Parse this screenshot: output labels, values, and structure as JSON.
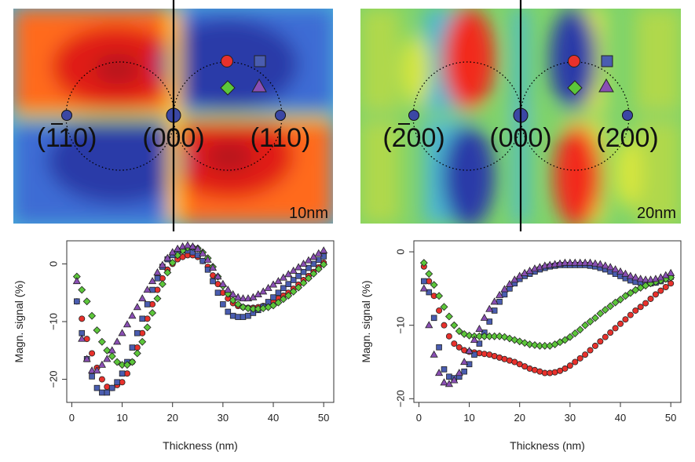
{
  "maps": [
    {
      "thickness_label": "10nm",
      "spots": [
        {
          "label": "(110)",
          "overbar": "left"
        },
        {
          "label": "(000)",
          "overbar": "none"
        },
        {
          "label": "(110)",
          "overbar": "none"
        }
      ]
    },
    {
      "thickness_label": "20nm",
      "spots": [
        {
          "label": "(200)",
          "overbar": "left"
        },
        {
          "label": "(000)",
          "overbar": "none"
        },
        {
          "label": "(200)",
          "overbar": "none"
        }
      ]
    }
  ],
  "markers": {
    "circle": "#e8312c",
    "square": "#4a5db0",
    "diamond": "#5cc63a",
    "triangle": "#8a4fb4"
  },
  "chart_data": [
    {
      "type": "scatter",
      "xlabel": "Thickness (nm)",
      "ylabel": "Magn. signal (%)",
      "xlim": [
        -1,
        52
      ],
      "ylim": [
        -24,
        4
      ],
      "xticks": [
        0,
        10,
        20,
        30,
        40,
        50
      ],
      "yticks": [
        -20,
        -10,
        0
      ],
      "x": [
        1,
        2,
        3,
        4,
        5,
        6,
        7,
        8,
        9,
        10,
        11,
        12,
        13,
        14,
        15,
        16,
        17,
        18,
        19,
        20,
        21,
        22,
        23,
        24,
        25,
        26,
        27,
        28,
        29,
        30,
        31,
        32,
        33,
        34,
        35,
        36,
        37,
        38,
        39,
        40,
        41,
        42,
        43,
        44,
        45,
        46,
        47,
        48,
        49,
        50
      ],
      "series": [
        {
          "name": "circle",
          "marker": "circle",
          "values": [
            -6.5,
            -9.5,
            -13,
            -15.5,
            -18,
            -20,
            -21.3,
            -21.5,
            -21,
            -20.5,
            -19,
            -17,
            -14.5,
            -12,
            -9.5,
            -7,
            -4.5,
            -2.5,
            -1,
            0,
            0.8,
            1.2,
            1.5,
            1.5,
            1.2,
            0.5,
            -0.5,
            -2,
            -3.5,
            -5,
            -6,
            -6.8,
            -7.3,
            -7.5,
            -7.6,
            -7.6,
            -7.5,
            -7.3,
            -7,
            -6.5,
            -6,
            -5.5,
            -5,
            -4.3,
            -3.6,
            -2.8,
            -2.1,
            -1.4,
            -0.6,
            0.2
          ]
        },
        {
          "name": "square",
          "marker": "square",
          "values": [
            -6.5,
            -12,
            -16.5,
            -19.5,
            -21.5,
            -22.3,
            -22.3,
            -21.5,
            -20.5,
            -19,
            -17,
            -14.5,
            -12,
            -9.5,
            -7,
            -4.5,
            -2.5,
            -0.5,
            0.8,
            1.5,
            2,
            2.3,
            2.3,
            2,
            1.5,
            0.5,
            -1,
            -3,
            -5,
            -7,
            -8.3,
            -9,
            -9.2,
            -9.2,
            -9,
            -8.5,
            -8,
            -7.4,
            -6.6,
            -5.8,
            -5,
            -4.2,
            -3.5,
            -2.8,
            -2.1,
            -1.4,
            -0.7,
            0,
            0.7,
            1.3
          ]
        },
        {
          "name": "diamond",
          "marker": "diamond",
          "values": [
            -2.2,
            -4.5,
            -6.5,
            -9,
            -11.5,
            -13.5,
            -15,
            -16,
            -17,
            -17.5,
            -17.5,
            -17,
            -15.5,
            -13.5,
            -11,
            -8.5,
            -6,
            -3.5,
            -1.5,
            0.2,
            1.5,
            2.3,
            2.8,
            2.9,
            2.7,
            2,
            1,
            -0.5,
            -2.2,
            -3.8,
            -5.2,
            -6.3,
            -7,
            -7.5,
            -7.7,
            -7.8,
            -7.8,
            -7.7,
            -7.5,
            -7.2,
            -6.7,
            -6.1,
            -5.5,
            -4.8,
            -4.1,
            -3.3,
            -2.5,
            -1.7,
            -0.9,
            -0.1
          ]
        },
        {
          "name": "triangle",
          "marker": "triangle",
          "values": [
            -3,
            -13,
            -16.5,
            -18.5,
            -18.5,
            -17.5,
            -16.5,
            -15,
            -13.5,
            -12,
            -10.5,
            -9,
            -7.5,
            -6,
            -4.5,
            -3,
            -1.5,
            -0.2,
            1,
            2,
            2.6,
            3,
            3.2,
            3,
            2.6,
            1.8,
            0.7,
            -0.7,
            -2.2,
            -3.5,
            -4.5,
            -5.3,
            -5.8,
            -6,
            -6,
            -5.8,
            -5.3,
            -4.8,
            -4.2,
            -3.6,
            -3,
            -2.4,
            -1.8,
            -1.2,
            -0.6,
            0,
            0.6,
            1.2,
            1.8,
            2.3
          ]
        }
      ]
    },
    {
      "type": "scatter",
      "xlabel": "Thickness (nm)",
      "ylabel": "Magn. signal (%)",
      "xlim": [
        -1,
        52
      ],
      "ylim": [
        -20.5,
        1.5
      ],
      "xticks": [
        0,
        10,
        20,
        30,
        40,
        50
      ],
      "yticks": [
        -20,
        -10,
        0
      ],
      "x": [
        1,
        2,
        3,
        4,
        5,
        6,
        7,
        8,
        9,
        10,
        11,
        12,
        13,
        14,
        15,
        16,
        17,
        18,
        19,
        20,
        21,
        22,
        23,
        24,
        25,
        26,
        27,
        28,
        29,
        30,
        31,
        32,
        33,
        34,
        35,
        36,
        37,
        38,
        39,
        40,
        41,
        42,
        43,
        44,
        45,
        46,
        47,
        48,
        49,
        50
      ],
      "series": [
        {
          "name": "circle",
          "marker": "circle",
          "values": [
            -2,
            -4,
            -6,
            -8,
            -10,
            -11.5,
            -12.5,
            -13,
            -13.4,
            -13.6,
            -13.7,
            -13.8,
            -13.9,
            -14,
            -14.2,
            -14.4,
            -14.6,
            -14.8,
            -15,
            -15.3,
            -15.6,
            -15.9,
            -16.1,
            -16.3,
            -16.5,
            -16.5,
            -16.4,
            -16.2,
            -15.9,
            -15.5,
            -15,
            -14.5,
            -14,
            -13.4,
            -12.8,
            -12.2,
            -11.6,
            -11,
            -10.4,
            -9.8,
            -9.2,
            -8.6,
            -8,
            -7.5,
            -7,
            -6.4,
            -5.8,
            -5.3,
            -4.8,
            -4.3
          ]
        },
        {
          "name": "square",
          "marker": "square",
          "values": [
            -4,
            -5.5,
            -9,
            -13,
            -16,
            -17,
            -17.2,
            -17,
            -16.3,
            -15.3,
            -14,
            -12.5,
            -11,
            -9.5,
            -8,
            -6.8,
            -5.8,
            -5,
            -4.3,
            -3.7,
            -3.3,
            -3,
            -2.7,
            -2.4,
            -2.2,
            -2,
            -1.9,
            -1.8,
            -1.8,
            -1.8,
            -1.8,
            -1.8,
            -1.8,
            -1.9,
            -2,
            -2.2,
            -2.4,
            -2.7,
            -3,
            -3.3,
            -3.6,
            -3.9,
            -4.1,
            -4.2,
            -4.3,
            -4.3,
            -4.2,
            -4,
            -3.7,
            -3.4
          ]
        },
        {
          "name": "diamond",
          "marker": "diamond",
          "values": [
            -1.5,
            -3,
            -4.5,
            -6,
            -7.5,
            -8.8,
            -10,
            -10.8,
            -11.2,
            -11.4,
            -11.5,
            -11.5,
            -11.5,
            -11.5,
            -11.5,
            -11.5,
            -11.6,
            -11.8,
            -12,
            -12.2,
            -12.4,
            -12.6,
            -12.7,
            -12.8,
            -12.8,
            -12.8,
            -12.6,
            -12.3,
            -12,
            -11.6,
            -11.1,
            -10.6,
            -10,
            -9.5,
            -9,
            -8.4,
            -7.9,
            -7.4,
            -6.9,
            -6.5,
            -6,
            -5.6,
            -5.2,
            -4.9,
            -4.6,
            -4.3,
            -4.1,
            -3.9,
            -3.7,
            -3.5
          ]
        },
        {
          "name": "triangle",
          "marker": "triangle",
          "values": [
            -5,
            -10,
            -14,
            -16.5,
            -17.8,
            -18,
            -17.5,
            -16.5,
            -15,
            -13.5,
            -12,
            -10.5,
            -9,
            -7.8,
            -6.8,
            -5.9,
            -5.1,
            -4.4,
            -3.8,
            -3.3,
            -2.9,
            -2.6,
            -2.3,
            -2.1,
            -1.9,
            -1.8,
            -1.7,
            -1.6,
            -1.5,
            -1.5,
            -1.5,
            -1.5,
            -1.5,
            -1.5,
            -1.6,
            -1.7,
            -1.9,
            -2.1,
            -2.4,
            -2.7,
            -3,
            -3.3,
            -3.5,
            -3.7,
            -3.8,
            -3.8,
            -3.7,
            -3.5,
            -3.2,
            -2.9
          ]
        }
      ]
    }
  ]
}
